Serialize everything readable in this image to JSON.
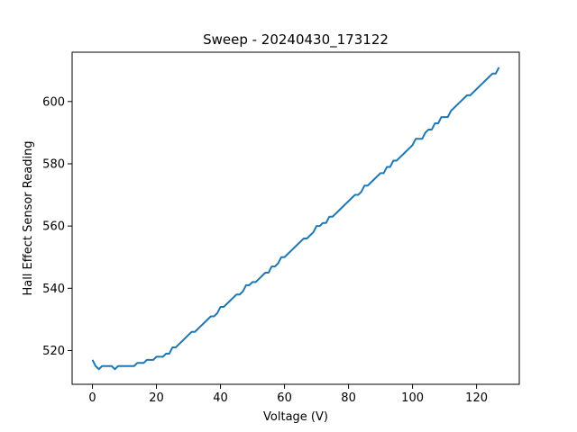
{
  "chart_data": {
    "type": "line",
    "title": "Sweep - 20240430_173122",
    "xlabel": "Voltage (V)",
    "ylabel": "Hall Effect Sensor Reading",
    "xlim": [
      -6.35,
      133.35
    ],
    "ylim": [
      509.15,
      615.85
    ],
    "xticks": [
      0,
      20,
      40,
      60,
      80,
      100,
      120
    ],
    "yticks": [
      520,
      540,
      560,
      580,
      600
    ],
    "grid": false,
    "series": [
      {
        "color": "#1f77b4",
        "x": [
          0,
          1,
          2,
          3,
          4,
          5,
          6,
          7,
          8,
          9,
          10,
          11,
          12,
          13,
          14,
          15,
          16,
          17,
          18,
          19,
          20,
          21,
          22,
          23,
          24,
          25,
          26,
          27,
          28,
          29,
          30,
          31,
          32,
          33,
          34,
          35,
          36,
          37,
          38,
          39,
          40,
          41,
          42,
          43,
          44,
          45,
          46,
          47,
          48,
          49,
          50,
          51,
          52,
          53,
          54,
          55,
          56,
          57,
          58,
          59,
          60,
          61,
          62,
          63,
          64,
          65,
          66,
          67,
          68,
          69,
          70,
          71,
          72,
          73,
          74,
          75,
          76,
          77,
          78,
          79,
          80,
          81,
          82,
          83,
          84,
          85,
          86,
          87,
          88,
          89,
          90,
          91,
          92,
          93,
          94,
          95,
          96,
          97,
          98,
          99,
          100,
          101,
          102,
          103,
          104,
          105,
          106,
          107,
          108,
          109,
          110,
          111,
          112,
          113,
          114,
          115,
          116,
          117,
          118,
          119,
          120,
          121,
          122,
          123,
          124,
          125,
          126,
          127
        ],
        "y": [
          517,
          515,
          514,
          515,
          515,
          515,
          515,
          514,
          515,
          515,
          515,
          515,
          515,
          515,
          516,
          516,
          516,
          517,
          517,
          517,
          518,
          518,
          518,
          519,
          519,
          521,
          521,
          522,
          523,
          524,
          525,
          526,
          526,
          527,
          528,
          529,
          530,
          531,
          531,
          532,
          534,
          534,
          535,
          536,
          537,
          538,
          538,
          539,
          541,
          541,
          542,
          542,
          543,
          544,
          545,
          545,
          547,
          547,
          548,
          550,
          550,
          551,
          552,
          553,
          554,
          555,
          556,
          556,
          557,
          558,
          560,
          560,
          561,
          561,
          563,
          563,
          564,
          565,
          566,
          567,
          568,
          569,
          570,
          570,
          571,
          573,
          573,
          574,
          575,
          576,
          577,
          577,
          579,
          579,
          581,
          581,
          582,
          583,
          584,
          585,
          586,
          588,
          588,
          588,
          590,
          591,
          591,
          593,
          593,
          595,
          595,
          595,
          597,
          598,
          599,
          600,
          601,
          602,
          602,
          603,
          604,
          605,
          606,
          607,
          608,
          609,
          609,
          611
        ]
      }
    ]
  }
}
